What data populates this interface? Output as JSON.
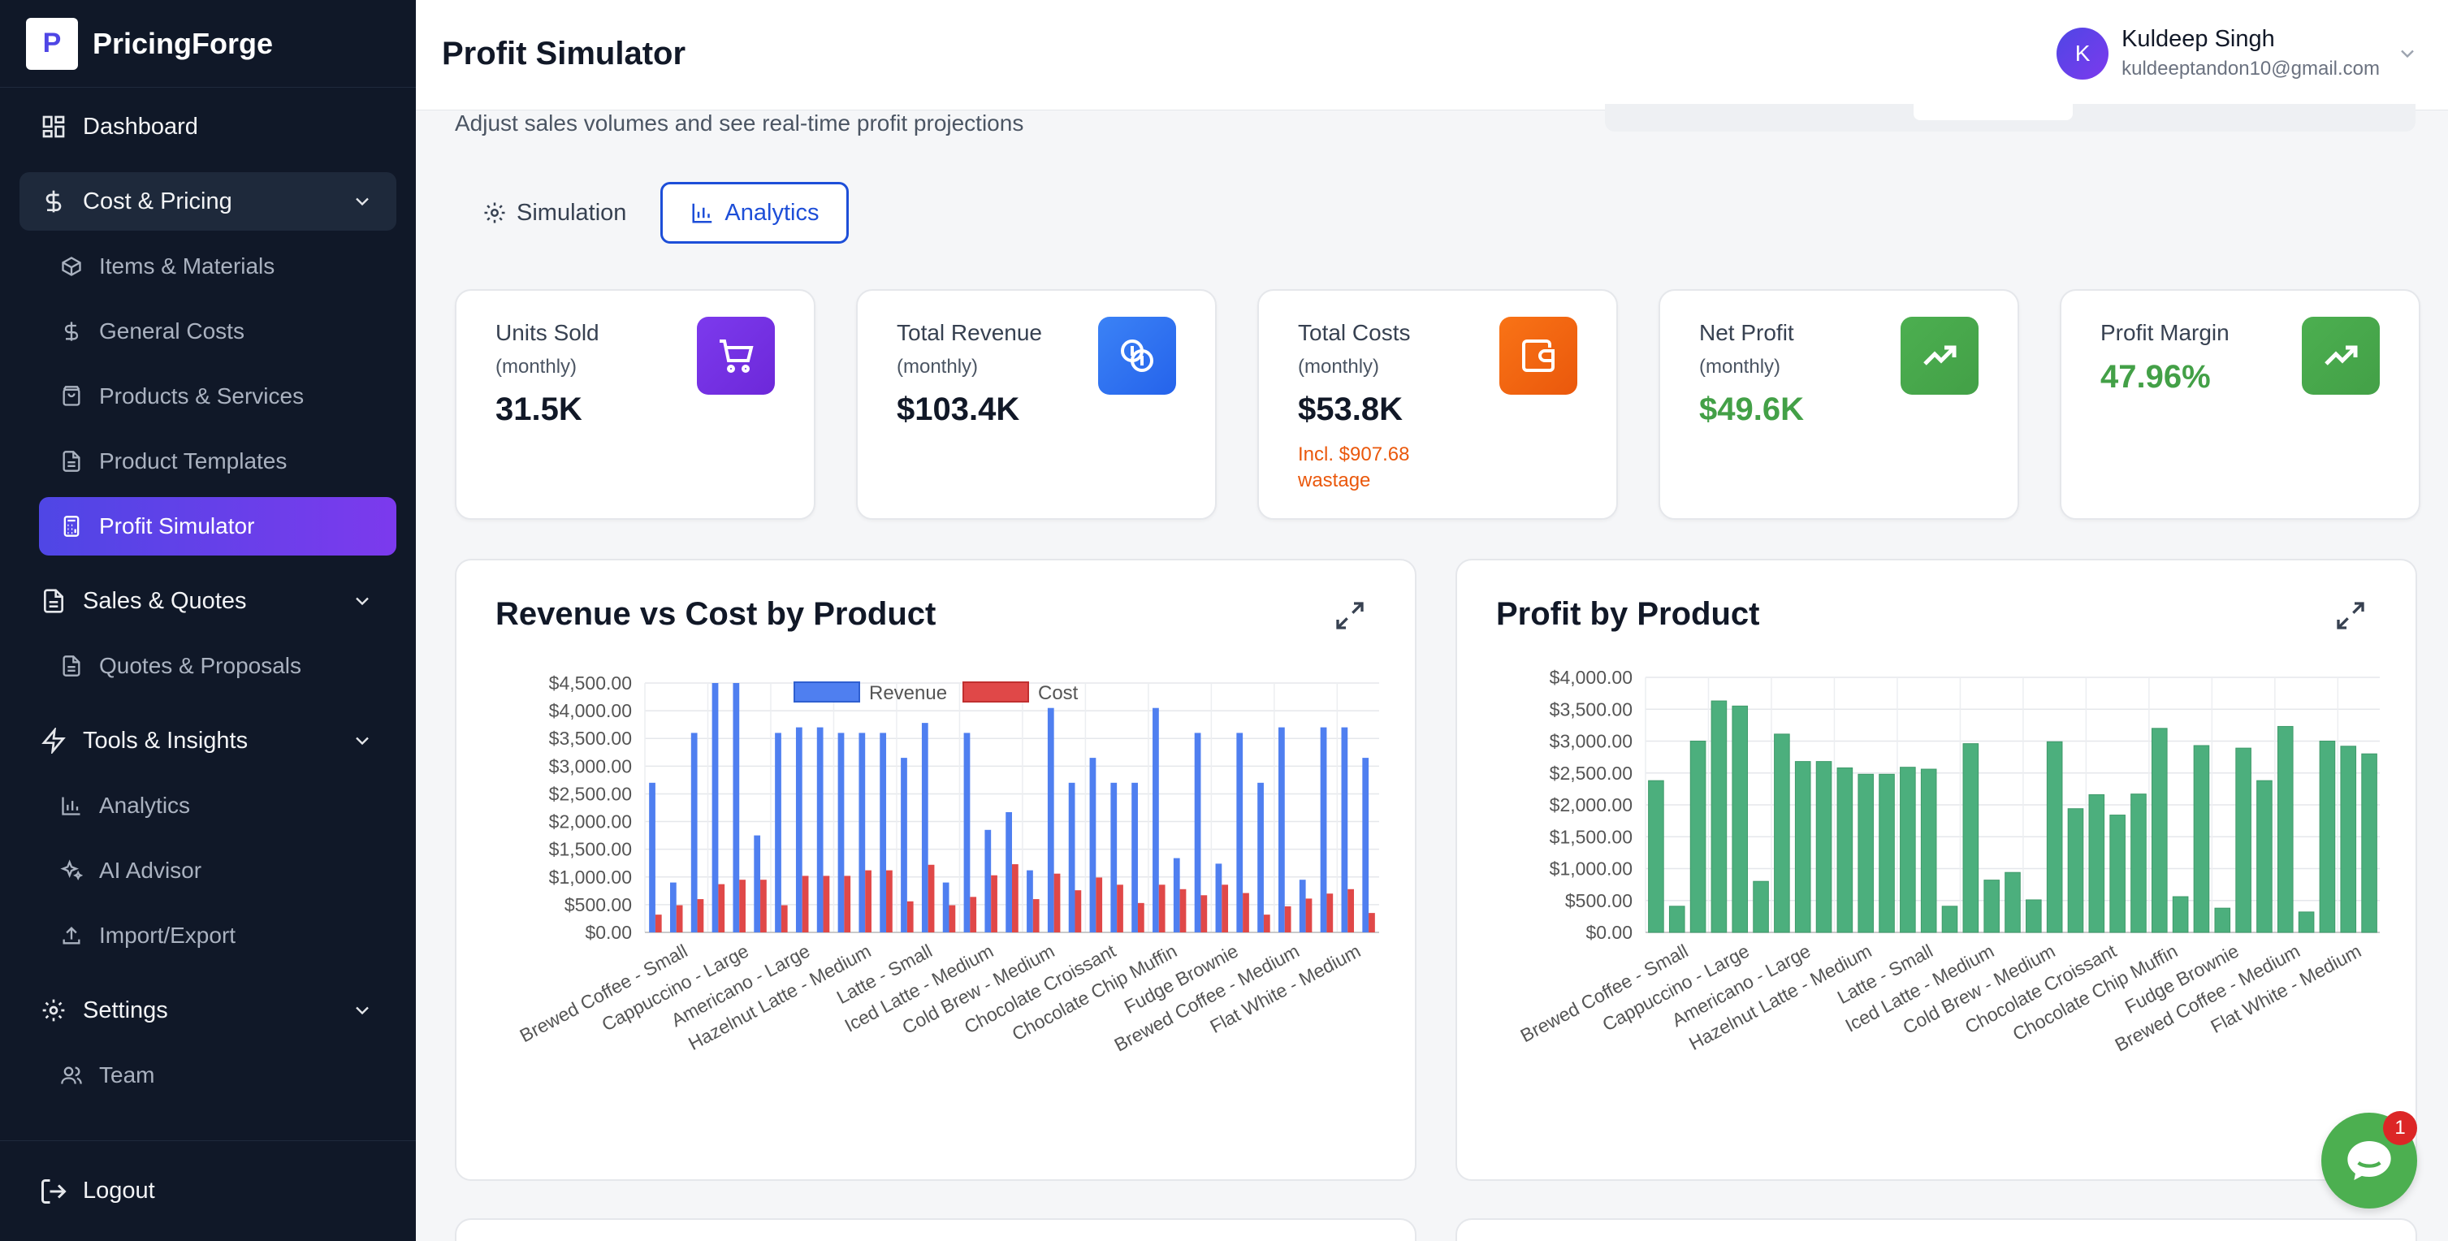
{
  "brand": {
    "name": "PricingForge",
    "logo_letter": "P"
  },
  "sidebar": {
    "dashboard": "Dashboard",
    "cost_pricing": "Cost & Pricing",
    "cost_items": [
      "Items & Materials",
      "General Costs",
      "Products & Services",
      "Product Templates",
      "Profit Simulator"
    ],
    "sales_quotes": "Sales & Quotes",
    "sales_items": [
      "Quotes & Proposals"
    ],
    "tools_insights": "Tools & Insights",
    "tools_items": [
      "Analytics",
      "AI Advisor",
      "Import/Export"
    ],
    "settings": "Settings",
    "settings_items": [
      "Team"
    ],
    "logout": "Logout"
  },
  "header": {
    "title": "Profit Simulator",
    "user_initial": "K",
    "user_name": "Kuldeep Singh",
    "user_email": "kuldeeptandon10@gmail.com"
  },
  "main": {
    "subtitle": "Adjust sales volumes and see real-time profit projections",
    "tabs": [
      {
        "label": "Simulation",
        "active": false
      },
      {
        "label": "Analytics",
        "active": true
      }
    ]
  },
  "cards": [
    {
      "label": "Units Sold",
      "period": "(monthly)",
      "value": "31.5K",
      "icon": "cart-icon",
      "color": "#7c3aed"
    },
    {
      "label": "Total Revenue",
      "period": "(monthly)",
      "value": "$103.4K",
      "icon": "coins-icon",
      "color": "#3b82f6"
    },
    {
      "label": "Total Costs",
      "period": "(monthly)",
      "value": "$53.8K",
      "note": "Incl. $907.68 wastage",
      "icon": "wallet-icon",
      "color": "#f97316"
    },
    {
      "label": "Net Profit",
      "period": "(monthly)",
      "value": "$49.6K",
      "icon": "trending-up-icon",
      "color": "#43a047"
    },
    {
      "label": "Profit Margin",
      "value": "47.96%",
      "icon": "trending-up-icon",
      "color": "#43a047"
    }
  ],
  "chart_data": [
    {
      "type": "bar",
      "title": "Revenue vs Cost by Product",
      "ylim": [
        0,
        4500
      ],
      "yticks": [
        "$0.00",
        "$500.00",
        "$1,000.00",
        "$1,500.00",
        "$2,000.00",
        "$2,500.00",
        "$3,000.00",
        "$3,500.00",
        "$4,000.00",
        "$4,500.00"
      ],
      "xtick_labels": [
        "Brewed Coffee - Small",
        "Cappuccino - Large",
        "Americano - Large",
        "Hazelnut Latte - Medium",
        "Latte - Small",
        "Iced Latte - Medium",
        "Cold Brew - Medium",
        "Chocolate Croissant",
        "Chocolate Chip Muffin",
        "Fudge Brownie",
        "Brewed Coffee - Medium",
        "Flat White - Medium"
      ],
      "legend": [
        "Revenue",
        "Cost"
      ],
      "legend_position": "top",
      "grid": true,
      "colors": {
        "revenue": "#4f7ff0",
        "cost": "#e04848"
      },
      "series": [
        {
          "name": "Revenue",
          "values": [
            2700,
            900,
            3600,
            4500,
            4500,
            1750,
            3600,
            3700,
            3700,
            3600,
            3600,
            3600,
            3150,
            3780,
            900,
            3600,
            1850,
            2170,
            1120,
            4050,
            2700,
            3150,
            2700,
            2700,
            4050,
            1340,
            3600,
            1240,
            3600,
            2700,
            3700,
            950,
            3700,
            3700,
            3150
          ]
        },
        {
          "name": "Cost",
          "values": [
            320,
            490,
            600,
            870,
            950,
            950,
            490,
            1020,
            1020,
            1020,
            1120,
            1120,
            560,
            1220,
            490,
            640,
            1030,
            1230,
            600,
            1060,
            760,
            990,
            860,
            530,
            860,
            780,
            670,
            860,
            710,
            320,
            470,
            610,
            700,
            780,
            350
          ]
        }
      ]
    },
    {
      "type": "bar",
      "title": "Profit by Product",
      "ylim": [
        0,
        4000
      ],
      "yticks": [
        "$0.00",
        "$500.00",
        "$1,000.00",
        "$1,500.00",
        "$2,000.00",
        "$2,500.00",
        "$3,000.00",
        "$3,500.00",
        "$4,000.00"
      ],
      "xtick_labels": [
        "Brewed Coffee - Small",
        "Cappuccino - Large",
        "Americano - Large",
        "Hazelnut Latte - Medium",
        "Latte - Small",
        "Iced Latte - Medium",
        "Cold Brew - Medium",
        "Chocolate Croissant",
        "Chocolate Chip Muffin",
        "Fudge Brownie",
        "Brewed Coffee - Medium",
        "Flat White - Medium"
      ],
      "grid": true,
      "colors": {
        "profit": "#4caf7d"
      },
      "series": [
        {
          "name": "Profit",
          "values": [
            2380,
            410,
            3000,
            3630,
            3550,
            800,
            3110,
            2680,
            2680,
            2580,
            2480,
            2480,
            2590,
            2560,
            410,
            2960,
            820,
            940,
            510,
            2990,
            1940,
            2160,
            1840,
            2170,
            3200,
            560,
            2930,
            380,
            2890,
            2380,
            3230,
            320,
            3000,
            2920,
            2800
          ]
        }
      ]
    }
  ],
  "chat": {
    "badge_count": "1"
  }
}
